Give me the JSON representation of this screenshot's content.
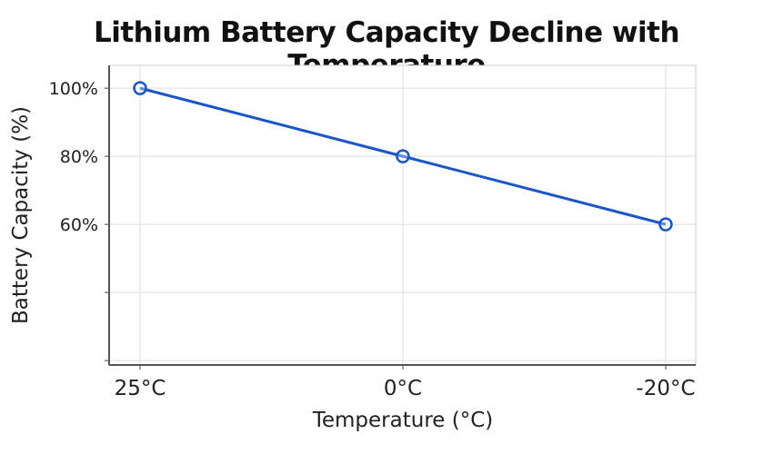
{
  "chart_data": {
    "type": "line",
    "title": "Lithium Battery Capacity Decline with Temperature",
    "xlabel": "Temperature (°C)",
    "ylabel": "Battery Capacity (%)",
    "categories": [
      "25°C",
      "0°C",
      "-20°C"
    ],
    "series": [
      {
        "values": [
          100,
          80,
          60
        ],
        "color": "#1a56c9",
        "marker": "hollow-circle"
      }
    ],
    "ylim": [
      18.7,
      106.7
    ],
    "yticks": [
      20,
      40,
      60,
      80,
      100
    ],
    "ytick_labels": [
      "",
      "",
      "60%",
      "80%",
      "100%"
    ],
    "grid": true,
    "legend": "none"
  }
}
